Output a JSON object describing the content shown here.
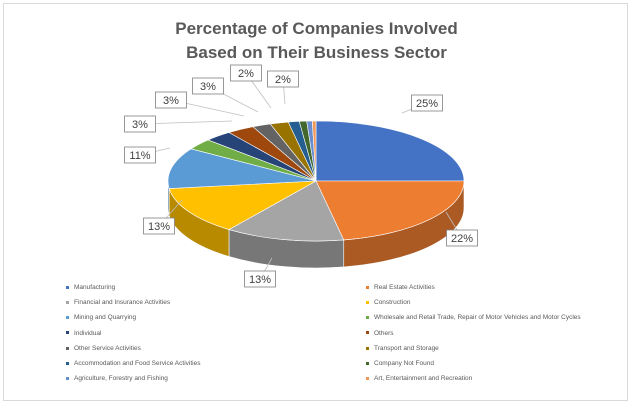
{
  "chart_data": {
    "type": "pie",
    "title_lines": [
      "Percentage of Companies Involved",
      "Based on Their Business Sector"
    ],
    "slices": [
      {
        "label": "Manufacturing",
        "value": 25,
        "data_label": "25%",
        "color": "#4472c4"
      },
      {
        "label": "Real Estate Activities",
        "value": 22,
        "data_label": "22%",
        "color": "#ed7d31"
      },
      {
        "label": "Financial and Insurance Activities",
        "value": 13,
        "data_label": "13%",
        "color": "#a5a5a5"
      },
      {
        "label": "Construction",
        "value": 13,
        "data_label": "13%",
        "color": "#ffc000"
      },
      {
        "label": "Mining and Quarrying",
        "value": 11,
        "data_label": "11%",
        "color": "#5b9bd5"
      },
      {
        "label": "Wholesale and Retail Trade, Repair of Motor Vehicles and Motor Cycles",
        "value": 3,
        "data_label": "3%",
        "color": "#70ad47"
      },
      {
        "label": "Individual",
        "value": 3,
        "data_label": "3%",
        "color": "#264478"
      },
      {
        "label": "Others",
        "value": 3,
        "data_label": "3%",
        "color": "#9e480e"
      },
      {
        "label": "Other Service Activities",
        "value": 2,
        "data_label": "2%",
        "color": "#636363"
      },
      {
        "label": "Transport and Storage",
        "value": 2,
        "data_label": "2%",
        "color": "#997300"
      },
      {
        "label": "Accommodation and Food Service Activities",
        "value": 1.2,
        "data_label": "",
        "color": "#255e91"
      },
      {
        "label": "Company Not Found",
        "value": 0.8,
        "data_label": "",
        "color": "#43682b"
      },
      {
        "label": "Agriculture, Forestry and Fishing",
        "value": 0.6,
        "data_label": "",
        "color": "#698ed0"
      },
      {
        "label": "Art, Entertainment and Recreation",
        "value": 0.4,
        "data_label": "",
        "color": "#f1975a"
      }
    ],
    "legend_position": "bottom"
  }
}
